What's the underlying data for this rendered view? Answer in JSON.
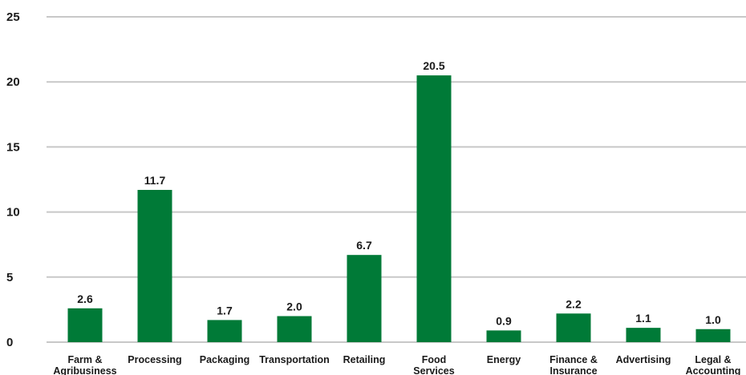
{
  "chart_data": {
    "type": "bar",
    "title": "",
    "xlabel": "",
    "ylabel": "",
    "ylim": [
      0,
      25
    ],
    "yticks": [
      "0",
      "5",
      "10",
      "15",
      "20",
      "25"
    ],
    "grid": true,
    "bar_color": "#007a37",
    "categories": [
      [
        "Farm &",
        "Agribusiness"
      ],
      [
        "Processing"
      ],
      [
        "Packaging"
      ],
      [
        "Transportation"
      ],
      [
        "Retailing"
      ],
      [
        "Food",
        "Services"
      ],
      [
        "Energy"
      ],
      [
        "Finance &",
        "Insurance"
      ],
      [
        "Advertising"
      ],
      [
        "Legal &",
        "Accounting"
      ]
    ],
    "values": [
      2.6,
      11.7,
      1.7,
      2.0,
      6.7,
      20.5,
      0.9,
      2.2,
      1.1,
      1.0
    ],
    "value_labels": [
      "2.6",
      "11.7",
      "1.7",
      "2.0",
      "6.7",
      "20.5",
      "0.9",
      "2.2",
      "1.1",
      "1.0"
    ]
  }
}
